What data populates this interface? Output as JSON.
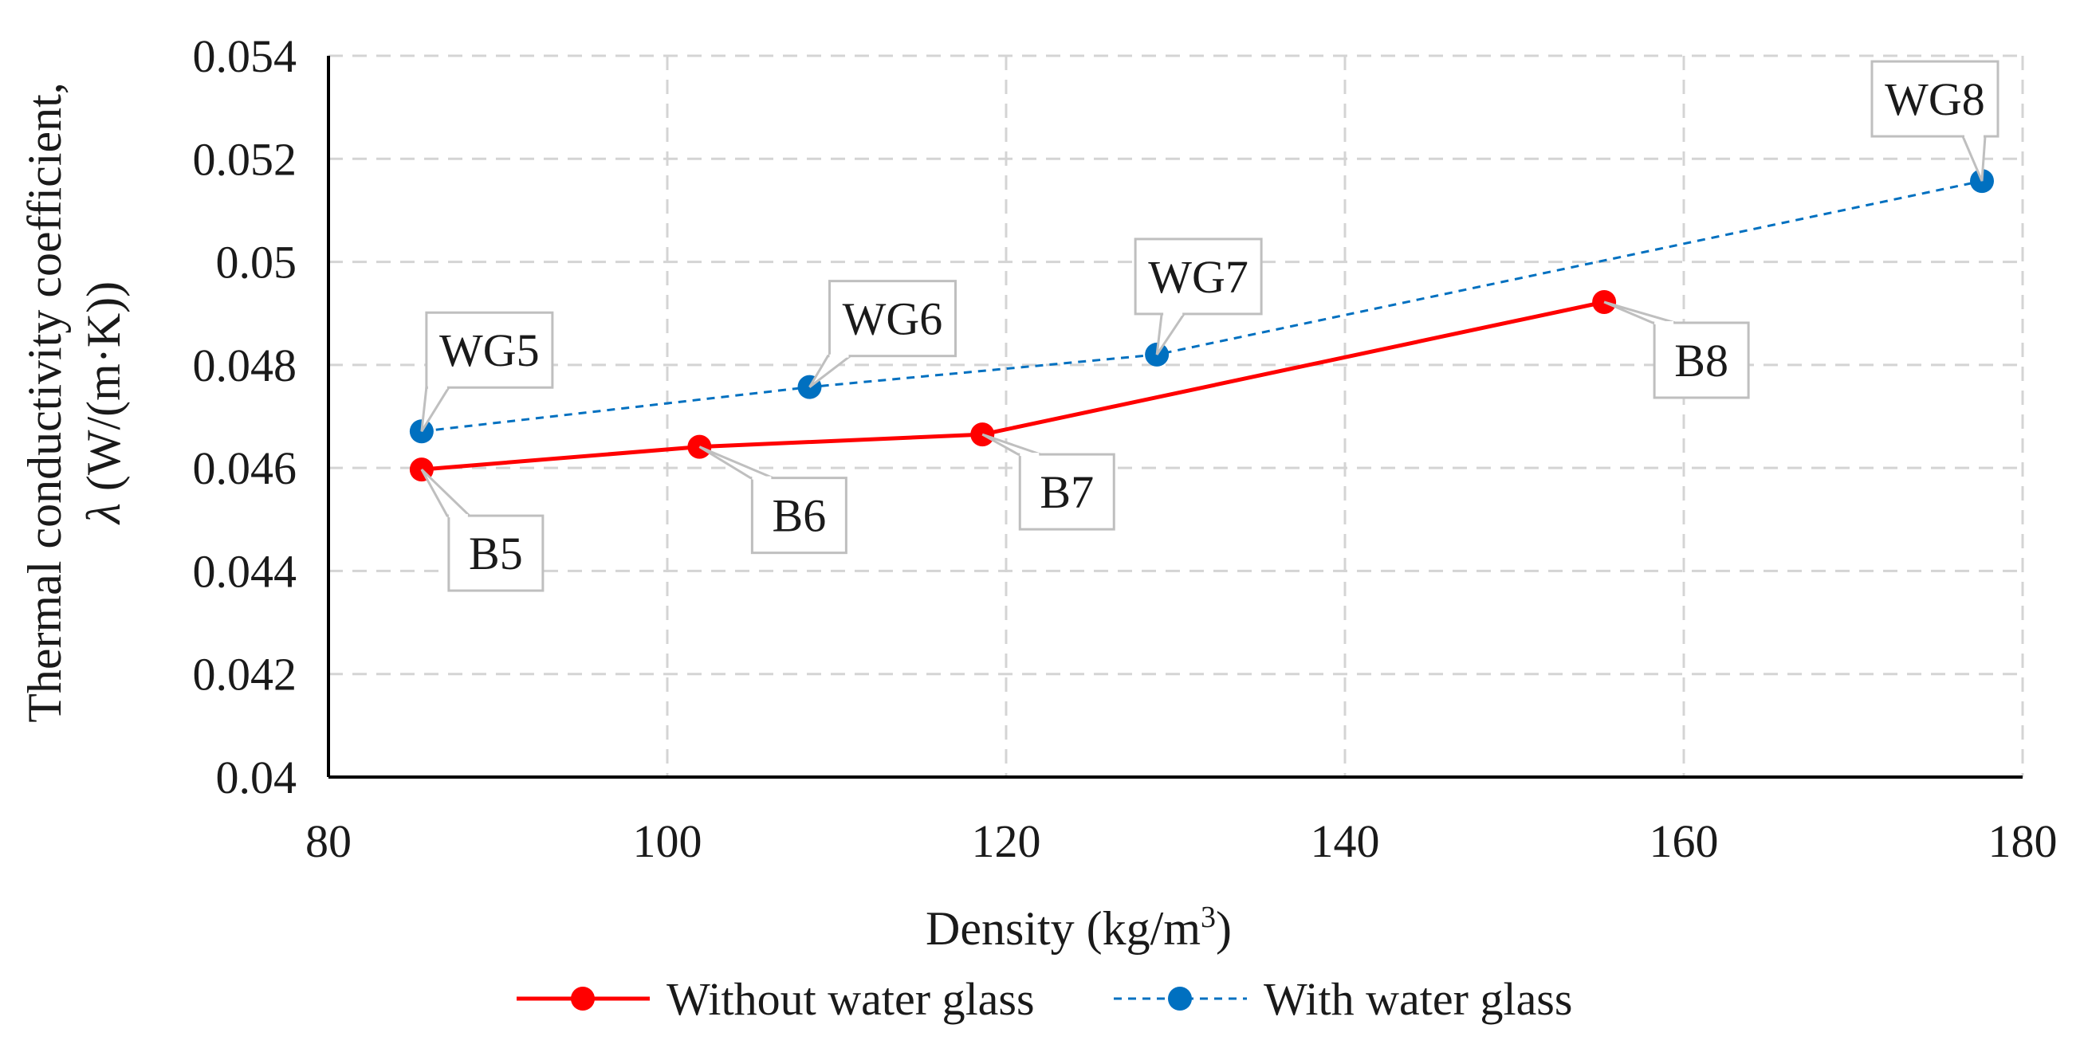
{
  "chart_data": {
    "type": "line",
    "title": "",
    "xlabel": "Density (kg/m",
    "xlabel_sup": "3",
    "xlabel_end": ")",
    "ylabel_line1": "Thermal conductivity coefficient,",
    "ylabel_symbol": "λ",
    "ylabel_line2": " (W/(m·K))",
    "xlim": [
      80,
      180
    ],
    "ylim": [
      0.04,
      0.054
    ],
    "xticks": [
      80,
      100,
      120,
      140,
      160,
      180
    ],
    "yticks": [
      0.04,
      0.042,
      0.044,
      0.046,
      0.048,
      0.05,
      0.052,
      0.054
    ],
    "xtick_labels": [
      "80",
      "100",
      "120",
      "140",
      "160",
      "180"
    ],
    "ytick_labels": [
      "0.04",
      "0.042",
      "0.044",
      "0.046",
      "0.048",
      "0.05",
      "0.052",
      "0.054"
    ],
    "grid": true,
    "legend_position": "bottom",
    "series": [
      {
        "name": "Without water glass",
        "color": "#ff0000",
        "line_style": "solid",
        "points": [
          {
            "x": 85.5,
            "y": 0.04597,
            "label": "B5"
          },
          {
            "x": 101.9,
            "y": 0.04641,
            "label": "B6"
          },
          {
            "x": 118.6,
            "y": 0.04665,
            "label": "B7"
          },
          {
            "x": 155.3,
            "y": 0.04922,
            "label": "B8"
          }
        ]
      },
      {
        "name": "With water glass",
        "color": "#0070c0",
        "line_style": "dashed",
        "points": [
          {
            "x": 85.5,
            "y": 0.04671,
            "label": "WG5"
          },
          {
            "x": 108.4,
            "y": 0.04757,
            "label": "WG6"
          },
          {
            "x": 128.9,
            "y": 0.0482,
            "label": "WG7"
          },
          {
            "x": 177.6,
            "y": 0.05157,
            "label": "WG8"
          }
        ]
      }
    ]
  }
}
